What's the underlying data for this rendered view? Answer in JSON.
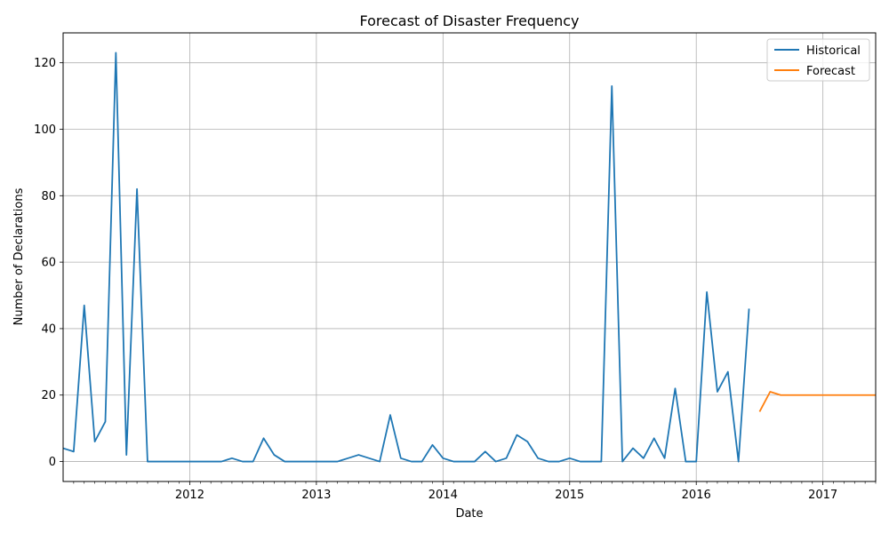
{
  "chart_data": {
    "type": "line",
    "title": "Forecast of Disaster Frequency",
    "xlabel": "Date",
    "ylabel": "Number of Declarations",
    "x_axis": "date",
    "xlim": [
      "2011-01",
      "2017-06"
    ],
    "ylim": [
      -6,
      129
    ],
    "y_ticks": [
      0,
      20,
      40,
      60,
      80,
      100,
      120
    ],
    "x_ticks": [
      "2012",
      "2013",
      "2014",
      "2015",
      "2016",
      "2017"
    ],
    "grid": true,
    "legend_position": "top-right",
    "series": [
      {
        "name": "Historical",
        "color": "#1f77b4",
        "points": [
          [
            "2011-01",
            4
          ],
          [
            "2011-02",
            3
          ],
          [
            "2011-03",
            47
          ],
          [
            "2011-04",
            6
          ],
          [
            "2011-05",
            12
          ],
          [
            "2011-06",
            123
          ],
          [
            "2011-07",
            2
          ],
          [
            "2011-08",
            82
          ],
          [
            "2011-09",
            0
          ],
          [
            "2011-10",
            0
          ],
          [
            "2011-11",
            0
          ],
          [
            "2011-12",
            0
          ],
          [
            "2012-01",
            0
          ],
          [
            "2012-02",
            0
          ],
          [
            "2012-03",
            0
          ],
          [
            "2012-04",
            0
          ],
          [
            "2012-05",
            1
          ],
          [
            "2012-06",
            0
          ],
          [
            "2012-07",
            0
          ],
          [
            "2012-08",
            7
          ],
          [
            "2012-09",
            2
          ],
          [
            "2012-10",
            0
          ],
          [
            "2012-11",
            0
          ],
          [
            "2012-12",
            0
          ],
          [
            "2013-01",
            0
          ],
          [
            "2013-02",
            0
          ],
          [
            "2013-03",
            0
          ],
          [
            "2013-04",
            1
          ],
          [
            "2013-05",
            2
          ],
          [
            "2013-06",
            1
          ],
          [
            "2013-07",
            0
          ],
          [
            "2013-08",
            14
          ],
          [
            "2013-09",
            1
          ],
          [
            "2013-10",
            0
          ],
          [
            "2013-11",
            0
          ],
          [
            "2013-12",
            5
          ],
          [
            "2014-01",
            1
          ],
          [
            "2014-02",
            0
          ],
          [
            "2014-03",
            0
          ],
          [
            "2014-04",
            0
          ],
          [
            "2014-05",
            3
          ],
          [
            "2014-06",
            0
          ],
          [
            "2014-07",
            1
          ],
          [
            "2014-08",
            8
          ],
          [
            "2014-09",
            6
          ],
          [
            "2014-10",
            1
          ],
          [
            "2014-11",
            0
          ],
          [
            "2014-12",
            0
          ],
          [
            "2015-01",
            1
          ],
          [
            "2015-02",
            0
          ],
          [
            "2015-03",
            0
          ],
          [
            "2015-04",
            0
          ],
          [
            "2015-05",
            113
          ],
          [
            "2015-06",
            0
          ],
          [
            "2015-07",
            4
          ],
          [
            "2015-08",
            1
          ],
          [
            "2015-09",
            7
          ],
          [
            "2015-10",
            1
          ],
          [
            "2015-11",
            22
          ],
          [
            "2015-12",
            0
          ],
          [
            "2016-01",
            0
          ],
          [
            "2016-02",
            51
          ],
          [
            "2016-03",
            21
          ],
          [
            "2016-04",
            27
          ],
          [
            "2016-05",
            0
          ],
          [
            "2016-06",
            46
          ]
        ]
      },
      {
        "name": "Forecast",
        "color": "#ff7f0e",
        "points": [
          [
            "2016-07",
            15
          ],
          [
            "2016-08",
            21
          ],
          [
            "2016-09",
            20
          ],
          [
            "2016-10",
            20
          ],
          [
            "2016-11",
            20
          ],
          [
            "2016-12",
            20
          ],
          [
            "2017-01",
            20
          ],
          [
            "2017-02",
            20
          ],
          [
            "2017-03",
            20
          ],
          [
            "2017-04",
            20
          ],
          [
            "2017-05",
            20
          ],
          [
            "2017-06",
            20
          ]
        ]
      }
    ]
  }
}
